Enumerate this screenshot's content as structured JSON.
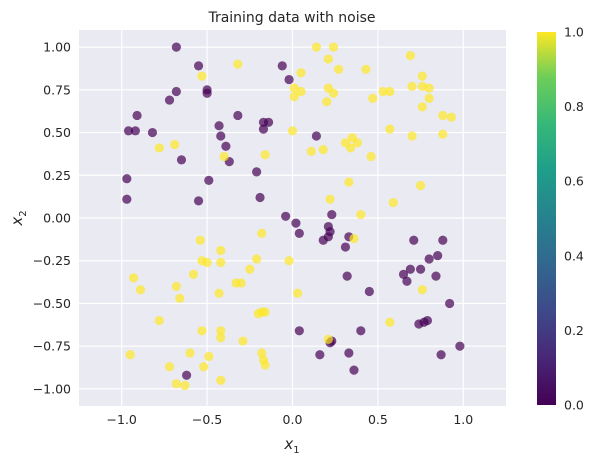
{
  "chart_data": {
    "type": "scatter",
    "title": "Training data with noise",
    "xlabel": "x",
    "xlabel_sub": "1",
    "ylabel": "x",
    "ylabel_sub": "2",
    "xlim": [
      -1.25,
      1.25
    ],
    "ylim": [
      -1.1,
      1.1
    ],
    "xticks": [
      -1.0,
      -0.5,
      0.0,
      0.5,
      1.0
    ],
    "xtick_labels": [
      "−1.0",
      "−0.5",
      "0.0",
      "0.5",
      "1.0"
    ],
    "yticks": [
      -1.0,
      -0.75,
      -0.5,
      -0.25,
      0.0,
      0.25,
      0.5,
      0.75,
      1.0
    ],
    "ytick_labels": [
      "−1.00",
      "−0.75",
      "−0.50",
      "−0.25",
      "0.00",
      "0.25",
      "0.50",
      "0.75",
      "1.00"
    ],
    "grid": true,
    "background_color": "#eaeaf2",
    "colormap": "viridis",
    "colorbar": {
      "range": [
        0.0,
        1.0
      ],
      "ticks": [
        0.0,
        0.2,
        0.4,
        0.6,
        0.8,
        1.0
      ],
      "tick_labels": [
        "0.0",
        "0.2",
        "0.4",
        "0.6",
        "0.8",
        "1.0"
      ]
    },
    "class_colors": {
      "0": "#440154",
      "1": "#fde725"
    },
    "points": [
      {
        "x": -0.68,
        "y": 1.0,
        "c": 0
      },
      {
        "x": -0.55,
        "y": 0.89,
        "c": 0
      },
      {
        "x": -0.5,
        "y": 0.75,
        "c": 0
      },
      {
        "x": -0.5,
        "y": 0.73,
        "c": 0
      },
      {
        "x": -0.68,
        "y": 0.74,
        "c": 0
      },
      {
        "x": -0.72,
        "y": 0.69,
        "c": 0
      },
      {
        "x": -0.91,
        "y": 0.6,
        "c": 0
      },
      {
        "x": -0.96,
        "y": 0.51,
        "c": 0
      },
      {
        "x": -0.92,
        "y": 0.51,
        "c": 0
      },
      {
        "x": -0.82,
        "y": 0.5,
        "c": 0
      },
      {
        "x": -0.43,
        "y": 0.54,
        "c": 0
      },
      {
        "x": -0.32,
        "y": 0.6,
        "c": 0
      },
      {
        "x": -0.39,
        "y": 0.42,
        "c": 0
      },
      {
        "x": -0.42,
        "y": 0.48,
        "c": 0
      },
      {
        "x": -0.37,
        "y": 0.33,
        "c": 0
      },
      {
        "x": -0.65,
        "y": 0.34,
        "c": 0
      },
      {
        "x": -0.17,
        "y": 0.56,
        "c": 0
      },
      {
        "x": -0.17,
        "y": 0.52,
        "c": 0
      },
      {
        "x": -0.14,
        "y": 0.56,
        "c": 0
      },
      {
        "x": -0.21,
        "y": 0.27,
        "c": 0
      },
      {
        "x": -0.06,
        "y": 0.89,
        "c": 0
      },
      {
        "x": -0.02,
        "y": 0.81,
        "c": 0
      },
      {
        "x": 0.14,
        "y": 0.48,
        "c": 0
      },
      {
        "x": -0.97,
        "y": 0.23,
        "c": 0
      },
      {
        "x": -0.97,
        "y": 0.11,
        "c": 0
      },
      {
        "x": -0.49,
        "y": 0.22,
        "c": 0
      },
      {
        "x": -0.55,
        "y": 0.1,
        "c": 0
      },
      {
        "x": -0.19,
        "y": 0.12,
        "c": 0
      },
      {
        "x": -0.04,
        "y": 0.01,
        "c": 0
      },
      {
        "x": 0.02,
        "y": -0.03,
        "c": 0
      },
      {
        "x": 0.04,
        "y": -0.09,
        "c": 0
      },
      {
        "x": 0.21,
        "y": -0.05,
        "c": 0
      },
      {
        "x": 0.22,
        "y": -0.08,
        "c": 0
      },
      {
        "x": 0.21,
        "y": -0.11,
        "c": 0
      },
      {
        "x": 0.18,
        "y": -0.13,
        "c": 0
      },
      {
        "x": 0.23,
        "y": 0.02,
        "c": 0
      },
      {
        "x": 0.33,
        "y": -0.11,
        "c": 0
      },
      {
        "x": 0.31,
        "y": -0.17,
        "c": 0
      },
      {
        "x": 0.32,
        "y": -0.34,
        "c": 0
      },
      {
        "x": 0.45,
        "y": -0.43,
        "c": 0
      },
      {
        "x": 0.65,
        "y": -0.33,
        "c": 0
      },
      {
        "x": 0.69,
        "y": -0.3,
        "c": 0
      },
      {
        "x": 0.67,
        "y": -0.37,
        "c": 0
      },
      {
        "x": 0.75,
        "y": -0.3,
        "c": 0
      },
      {
        "x": 0.8,
        "y": -0.24,
        "c": 0
      },
      {
        "x": 0.71,
        "y": -0.13,
        "c": 0
      },
      {
        "x": 0.85,
        "y": -0.22,
        "c": 0
      },
      {
        "x": 0.88,
        "y": -0.13,
        "c": 0
      },
      {
        "x": 0.84,
        "y": -0.34,
        "c": 0
      },
      {
        "x": 0.92,
        "y": -0.5,
        "c": 0
      },
      {
        "x": 0.77,
        "y": -0.61,
        "c": 0
      },
      {
        "x": 0.79,
        "y": -0.6,
        "c": 0
      },
      {
        "x": 0.74,
        "y": -0.62,
        "c": 0
      },
      {
        "x": 0.87,
        "y": -0.8,
        "c": 0
      },
      {
        "x": 0.98,
        "y": -0.75,
        "c": 0
      },
      {
        "x": 0.04,
        "y": -0.66,
        "c": 0
      },
      {
        "x": 0.22,
        "y": -0.73,
        "c": 0
      },
      {
        "x": 0.23,
        "y": -0.72,
        "c": 0
      },
      {
        "x": 0.16,
        "y": -0.8,
        "c": 0
      },
      {
        "x": 0.33,
        "y": -0.79,
        "c": 0
      },
      {
        "x": 0.4,
        "y": -0.66,
        "c": 0
      },
      {
        "x": 0.36,
        "y": -0.89,
        "c": 0
      },
      {
        "x": -0.62,
        "y": -0.92,
        "c": 0
      },
      {
        "x": 0.14,
        "y": 1.0,
        "c": 1
      },
      {
        "x": 0.24,
        "y": 1.0,
        "c": 1
      },
      {
        "x": 0.21,
        "y": 0.93,
        "c": 1
      },
      {
        "x": 0.27,
        "y": 0.87,
        "c": 1
      },
      {
        "x": 0.05,
        "y": 0.85,
        "c": 1
      },
      {
        "x": 0.01,
        "y": 0.76,
        "c": 1
      },
      {
        "x": 0.01,
        "y": 0.71,
        "c": 1
      },
      {
        "x": 0.05,
        "y": 0.74,
        "c": 1
      },
      {
        "x": 0.21,
        "y": 0.76,
        "c": 1
      },
      {
        "x": 0.24,
        "y": 0.73,
        "c": 1
      },
      {
        "x": 0.2,
        "y": 0.68,
        "c": 1
      },
      {
        "x": 0.43,
        "y": 0.87,
        "c": 1
      },
      {
        "x": 0.47,
        "y": 0.7,
        "c": 1
      },
      {
        "x": 0.53,
        "y": 0.74,
        "c": 1
      },
      {
        "x": 0.57,
        "y": 0.74,
        "c": 1
      },
      {
        "x": 0.69,
        "y": 0.95,
        "c": 1
      },
      {
        "x": 0.76,
        "y": 0.83,
        "c": 1
      },
      {
        "x": 0.8,
        "y": 0.76,
        "c": 1
      },
      {
        "x": 0.76,
        "y": 0.77,
        "c": 1
      },
      {
        "x": 0.7,
        "y": 0.77,
        "c": 1
      },
      {
        "x": 0.76,
        "y": 0.65,
        "c": 1
      },
      {
        "x": 0.8,
        "y": 0.7,
        "c": 1
      },
      {
        "x": 0.88,
        "y": 0.6,
        "c": 1
      },
      {
        "x": 0.93,
        "y": 0.59,
        "c": 1
      },
      {
        "x": 0.88,
        "y": 0.49,
        "c": 1
      },
      {
        "x": 0.7,
        "y": 0.48,
        "c": 1
      },
      {
        "x": 0.57,
        "y": 0.52,
        "c": 1
      },
      {
        "x": 0.46,
        "y": 0.36,
        "c": 1
      },
      {
        "x": 0.35,
        "y": 0.47,
        "c": 1
      },
      {
        "x": 0.31,
        "y": 0.44,
        "c": 1
      },
      {
        "x": 0.38,
        "y": 0.44,
        "c": 1
      },
      {
        "x": 0.34,
        "y": 0.41,
        "c": 1
      },
      {
        "x": 0.11,
        "y": 0.39,
        "c": 1
      },
      {
        "x": 0.18,
        "y": 0.4,
        "c": 1
      },
      {
        "x": -0.0,
        "y": 0.51,
        "c": 1
      },
      {
        "x": -0.32,
        "y": 0.9,
        "c": 1
      },
      {
        "x": -0.53,
        "y": 0.83,
        "c": 1
      },
      {
        "x": -0.78,
        "y": 0.41,
        "c": 1
      },
      {
        "x": -0.69,
        "y": 0.43,
        "c": 1
      },
      {
        "x": -0.4,
        "y": 0.36,
        "c": 1
      },
      {
        "x": -0.16,
        "y": 0.37,
        "c": 1
      },
      {
        "x": 0.33,
        "y": 0.21,
        "c": 1
      },
      {
        "x": 0.22,
        "y": 0.11,
        "c": 1
      },
      {
        "x": 0.4,
        "y": 0.02,
        "c": 1
      },
      {
        "x": 0.59,
        "y": 0.09,
        "c": 1
      },
      {
        "x": 0.75,
        "y": 0.19,
        "c": 1
      },
      {
        "x": 0.36,
        "y": -0.12,
        "c": 1
      },
      {
        "x": -0.54,
        "y": -0.13,
        "c": 1
      },
      {
        "x": -0.42,
        "y": -0.19,
        "c": 1
      },
      {
        "x": -0.18,
        "y": -0.09,
        "c": 1
      },
      {
        "x": -0.53,
        "y": -0.25,
        "c": 1
      },
      {
        "x": -0.5,
        "y": -0.26,
        "c": 1
      },
      {
        "x": -0.58,
        "y": -0.33,
        "c": 1
      },
      {
        "x": -0.42,
        "y": -0.26,
        "c": 1
      },
      {
        "x": -0.21,
        "y": -0.24,
        "c": 1
      },
      {
        "x": -0.25,
        "y": -0.3,
        "c": 1
      },
      {
        "x": -0.33,
        "y": -0.38,
        "c": 1
      },
      {
        "x": -0.3,
        "y": -0.38,
        "c": 1
      },
      {
        "x": -0.43,
        "y": -0.44,
        "c": 1
      },
      {
        "x": -0.68,
        "y": -0.4,
        "c": 1
      },
      {
        "x": -0.66,
        "y": -0.47,
        "c": 1
      },
      {
        "x": -0.93,
        "y": -0.35,
        "c": 1
      },
      {
        "x": -0.89,
        "y": -0.42,
        "c": 1
      },
      {
        "x": -0.78,
        "y": -0.6,
        "c": 1
      },
      {
        "x": -0.02,
        "y": -0.25,
        "c": 1
      },
      {
        "x": 0.03,
        "y": -0.44,
        "c": 1
      },
      {
        "x": -0.18,
        "y": -0.55,
        "c": 1
      },
      {
        "x": -0.16,
        "y": -0.55,
        "c": 1
      },
      {
        "x": -0.2,
        "y": -0.56,
        "c": 1
      },
      {
        "x": -0.53,
        "y": -0.66,
        "c": 1
      },
      {
        "x": -0.42,
        "y": -0.66,
        "c": 1
      },
      {
        "x": -0.42,
        "y": -0.7,
        "c": 1
      },
      {
        "x": -0.29,
        "y": -0.72,
        "c": 1
      },
      {
        "x": -0.6,
        "y": -0.79,
        "c": 1
      },
      {
        "x": -0.49,
        "y": -0.81,
        "c": 1
      },
      {
        "x": -0.18,
        "y": -0.79,
        "c": 1
      },
      {
        "x": -0.17,
        "y": -0.83,
        "c": 1
      },
      {
        "x": -0.16,
        "y": -0.86,
        "c": 1
      },
      {
        "x": -0.52,
        "y": -0.87,
        "c": 1
      },
      {
        "x": -0.72,
        "y": -0.87,
        "c": 1
      },
      {
        "x": -0.95,
        "y": -0.8,
        "c": 1
      },
      {
        "x": -0.68,
        "y": -0.97,
        "c": 1
      },
      {
        "x": -0.63,
        "y": -0.98,
        "c": 1
      },
      {
        "x": -0.42,
        "y": -0.95,
        "c": 1
      },
      {
        "x": 0.57,
        "y": -0.61,
        "c": 1
      },
      {
        "x": 0.76,
        "y": -0.42,
        "c": 1
      },
      {
        "x": 0.21,
        "y": -0.71,
        "c": 1
      }
    ]
  }
}
